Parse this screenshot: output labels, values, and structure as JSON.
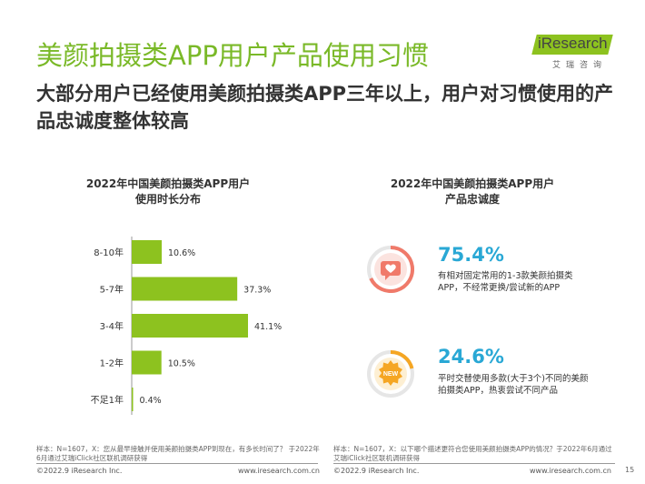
{
  "header": {
    "title": "美颜拍摄类APP用户产品使用习惯",
    "subtitle": "大部分用户已经使用美颜拍摄类APP三年以上，用户对习惯使用的产品忠诚度整体较高"
  },
  "logo": {
    "name": "iResearch",
    "subtitle": "艾瑞咨询"
  },
  "left_panel": {
    "title_line1": "2022年中国美颜拍摄类APP用户",
    "title_line2": "使用时长分布",
    "note": "样本：N=1607，X：您从最早接触并使用美颜拍摄类APP到现在，有多长时间了？ 于2022年6月通过艾瑞iClick社区联机调研获得",
    "copyright": "©2022.9 iResearch Inc.",
    "website": "www.iresearch.com.cn"
  },
  "right_panel": {
    "title_line1": "2022年中国美颜拍摄类APP用户",
    "title_line2": "产品忠诚度",
    "stat1": {
      "percent": "75.4%",
      "description": "有相对固定常用的1-3款美颜拍摄类APP，不经常更换/尝试新的APP",
      "icon": "heart-chat-icon"
    },
    "stat2": {
      "percent": "24.6%",
      "description": "平时交替使用多款(大于3个)不同的美颜拍摄类APP，热衷尝试不同产品",
      "icon": "new-badge-icon",
      "badge_text": "NEW"
    },
    "note": "样本：N=1607，X：以下哪个描述更符合您使用美颜拍摄类APP的情况？于2022年6月通过艾瑞iClick社区联机调研获得",
    "copyright": "©2022.9 iResearch Inc.",
    "website": "www.iresearch.com.cn"
  },
  "page_number": "15",
  "colors": {
    "accent_green": "#7ab928",
    "bar_green": "#8dc21f",
    "blue": "#29a8d5",
    "coral": "#f07a6a",
    "orange": "#f5a623"
  },
  "chart_data": {
    "type": "bar",
    "orientation": "horizontal",
    "title": "2022年中国美颜拍摄类APP用户使用时长分布",
    "categories": [
      "8-10年",
      "5-7年",
      "3-4年",
      "1-2年",
      "不足1年"
    ],
    "values": [
      10.6,
      37.3,
      41.1,
      10.5,
      0.4
    ],
    "value_labels": [
      "10.6%",
      "37.3%",
      "41.1%",
      "10.5%",
      "0.4%"
    ],
    "unit": "%",
    "xlim": [
      0,
      45
    ],
    "grid": false,
    "legend": "none"
  }
}
